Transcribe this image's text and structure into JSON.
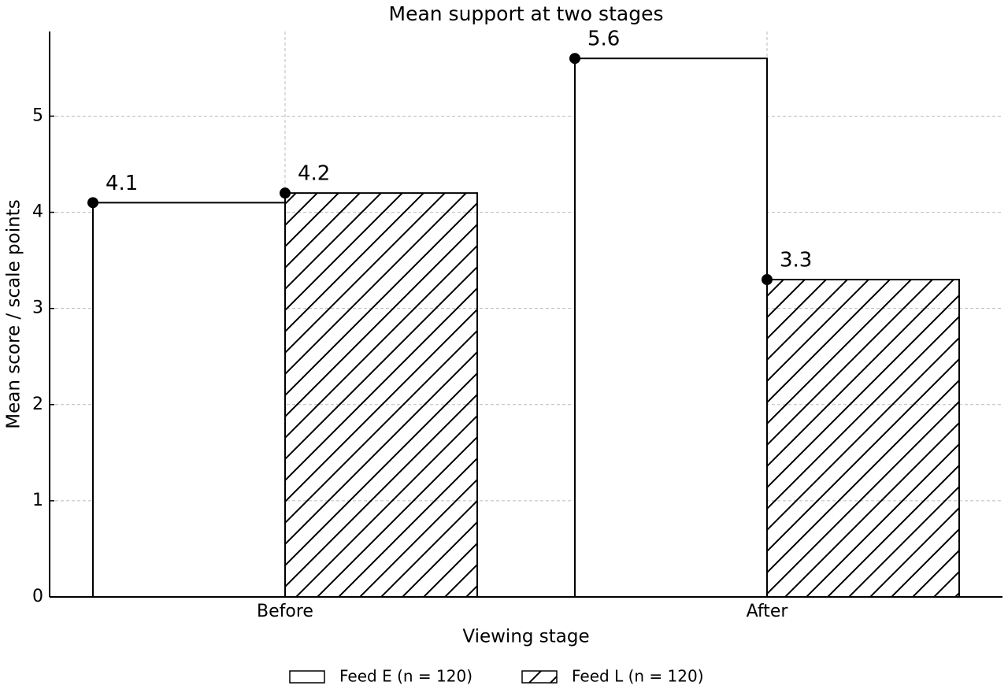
{
  "chart_data": {
    "type": "bar",
    "title": "Mean support at two stages",
    "x_label": "Viewing stage",
    "y_label": "Mean score / scale points",
    "categories": [
      "Before",
      "After"
    ],
    "series": [
      {
        "name": "Feed E (n = 120)",
        "color": "#ffffff",
        "hatch": false,
        "values": [
          4.1,
          5.6
        ]
      },
      {
        "name": "Feed L (n = 120)",
        "color": "#ffffff",
        "hatch": true,
        "values": [
          4.2,
          3.3
        ]
      }
    ],
    "ylim": [
      0,
      5.88
    ],
    "yticks": [
      0,
      1,
      2,
      3,
      4,
      5
    ],
    "grid": true,
    "legend": "bottom"
  }
}
